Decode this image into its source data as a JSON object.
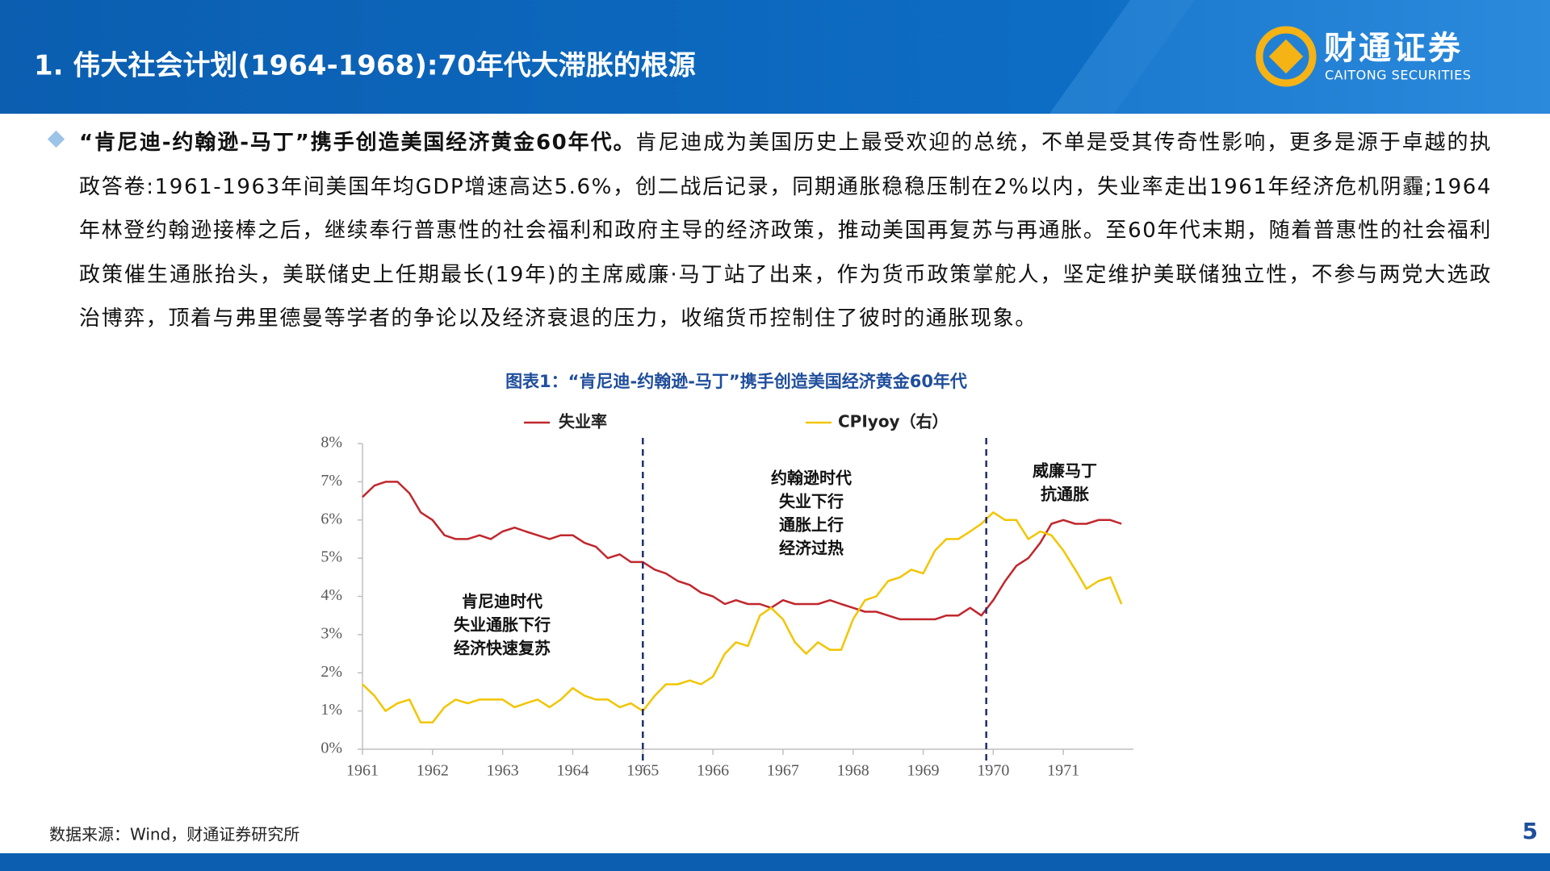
{
  "header": {
    "title": "1. 伟大社会计划(1964-1968):70年代大滞胀的根源",
    "logo_cn": "财通证券",
    "logo_en": "CAITONG SECURITIES"
  },
  "intro": {
    "lead": "“肯尼迪-约翰逊-马丁”携手创造美国经济黄金60年代。",
    "body": "肯尼迪成为美国历史上最受欢迎的总统，不单是受其传奇性影响，更多是源于卓越的执政答卷:1961-1963年间美国年均GDP增速高达5.6%，创二战后记录，同期通胀稳稳压制在2%以内，失业率走出1961年经济危机阴霾;1964年林登约翰逊接棒之后，继续奉行普惠性的社会福利和政府主导的经济政策，推动美国再复苏与再通胀。至60年代末期，随着普惠性的社会福利政策催生通胀抬头，美联储史上任期最长(19年)的主席威廉·马丁站了出来，作为货币政策掌舵人，坚定维护美联储独立性，不参与两党大选政治博弈，顶着与弗里德曼等学者的争论以及经济衰退的压力，收缩货币控制住了彼时的通胀现象。"
  },
  "chart_data": {
    "type": "line",
    "title": "图表1：“肯尼迪-约翰逊-马丁”携手创造美国经济黄金60年代",
    "x": [
      1961,
      1961.17,
      1961.33,
      1961.5,
      1961.67,
      1961.83,
      1962,
      1962.17,
      1962.33,
      1962.5,
      1962.67,
      1962.83,
      1963,
      1963.17,
      1963.33,
      1963.5,
      1963.67,
      1963.83,
      1964,
      1964.17,
      1964.33,
      1964.5,
      1964.67,
      1964.83,
      1965,
      1965.17,
      1965.33,
      1965.5,
      1965.67,
      1965.83,
      1966,
      1966.17,
      1966.33,
      1966.5,
      1966.67,
      1966.83,
      1967,
      1967.17,
      1967.33,
      1967.5,
      1967.67,
      1967.83,
      1968,
      1968.17,
      1968.33,
      1968.5,
      1968.67,
      1968.83,
      1969,
      1969.17,
      1969.33,
      1969.5,
      1969.67,
      1969.83,
      1970,
      1970.17,
      1970.33,
      1970.5,
      1970.67,
      1970.83,
      1971,
      1971.17,
      1971.33,
      1971.5,
      1971.67,
      1971.83
    ],
    "series": [
      {
        "name": "失业率",
        "color": "#c0272d",
        "values": [
          6.6,
          6.9,
          7.0,
          7.0,
          6.7,
          6.2,
          6.0,
          5.6,
          5.5,
          5.5,
          5.6,
          5.5,
          5.7,
          5.8,
          5.7,
          5.6,
          5.5,
          5.6,
          5.6,
          5.4,
          5.3,
          5.0,
          5.1,
          4.9,
          4.9,
          4.7,
          4.6,
          4.4,
          4.3,
          4.1,
          4.0,
          3.8,
          3.9,
          3.8,
          3.8,
          3.7,
          3.9,
          3.8,
          3.8,
          3.8,
          3.9,
          3.8,
          3.7,
          3.6,
          3.6,
          3.5,
          3.4,
          3.4,
          3.4,
          3.4,
          3.5,
          3.5,
          3.7,
          3.5,
          3.9,
          4.4,
          4.8,
          5.0,
          5.4,
          5.9,
          6.0,
          5.9,
          5.9,
          6.0,
          6.0,
          5.9
        ]
      },
      {
        "name": "CPIyoy（右）",
        "color": "#f2c500",
        "values": [
          1.7,
          1.4,
          1.0,
          1.2,
          1.3,
          0.7,
          0.7,
          1.1,
          1.3,
          1.2,
          1.3,
          1.3,
          1.3,
          1.1,
          1.2,
          1.3,
          1.1,
          1.3,
          1.6,
          1.4,
          1.3,
          1.3,
          1.1,
          1.2,
          1.0,
          1.4,
          1.7,
          1.7,
          1.8,
          1.7,
          1.9,
          2.5,
          2.8,
          2.7,
          3.5,
          3.7,
          3.4,
          2.8,
          2.5,
          2.8,
          2.6,
          2.6,
          3.4,
          3.9,
          4.0,
          4.4,
          4.5,
          4.7,
          4.6,
          5.2,
          5.5,
          5.5,
          5.7,
          5.9,
          6.2,
          6.0,
          6.0,
          5.5,
          5.7,
          5.6,
          5.2,
          4.7,
          4.2,
          4.4,
          4.5,
          3.8
        ]
      }
    ],
    "xlim": [
      1961,
      1972
    ],
    "xticks": [
      1961,
      1962,
      1963,
      1964,
      1965,
      1966,
      1967,
      1968,
      1969,
      1970,
      1971
    ],
    "ylim": [
      0,
      8
    ],
    "yticks": [
      {
        "value": 0,
        "label": "0%"
      },
      {
        "value": 1,
        "label": "1%"
      },
      {
        "value": 2,
        "label": "2%"
      },
      {
        "value": 3,
        "label": "3%"
      },
      {
        "value": 4,
        "label": "4%"
      },
      {
        "value": 5,
        "label": "5%"
      },
      {
        "value": 6,
        "label": "6%"
      },
      {
        "value": 7,
        "label": "7%"
      },
      {
        "value": 8,
        "label": "8%"
      }
    ],
    "vlines": [
      1965,
      1969.9
    ],
    "annotations": [
      [
        "肯尼迪时代",
        "失业通胀下行",
        "经济快速复苏"
      ],
      [
        "约翰逊时代",
        "失业下行",
        "通胀上行",
        "经济过热"
      ],
      [
        "威廉马丁",
        "抗通胀"
      ]
    ]
  },
  "footer": {
    "source": "数据来源：Wind，财通证券研究所",
    "page": 5
  }
}
